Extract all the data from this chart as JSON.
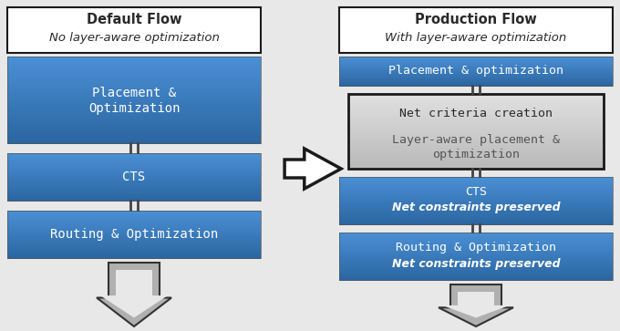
{
  "fig_bg": "#e8e8e8",
  "blue_top": "#4a8fd4",
  "blue_bot": "#2a65a0",
  "gray_top": "#e0e0e0",
  "gray_bot": "#b8b8b8",
  "white": "#ffffff",
  "border_dark": "#1a1a1a",
  "text_white": "#ffffff",
  "text_dark": "#2a2a2a",
  "text_gray": "#555555",
  "connector_color": "#444444",
  "arrow_fill": "#b0b0b0",
  "arrow_edge": "#333333",
  "left_title_main": "Default Flow",
  "left_title_sub": "No layer-aware optimization",
  "right_title_main": "Production Flow",
  "right_title_sub": "With layer-aware optimization",
  "left_box1_line1": "Placement &",
  "left_box1_line2": "Optimization",
  "left_box2": "CTS",
  "left_box3": "Routing & Optimization",
  "right_box1": "Placement & optimization",
  "right_box2_line1": "Net criteria creation",
  "right_box2_line2": "Layer-aware placement &",
  "right_box2_line3": "optimization",
  "right_box3_line1": "CTS",
  "right_box3_line2": "Net constraints preserved",
  "right_box4_line1": "Routing & Optimization",
  "right_box4_line2": "Net constraints preserved"
}
